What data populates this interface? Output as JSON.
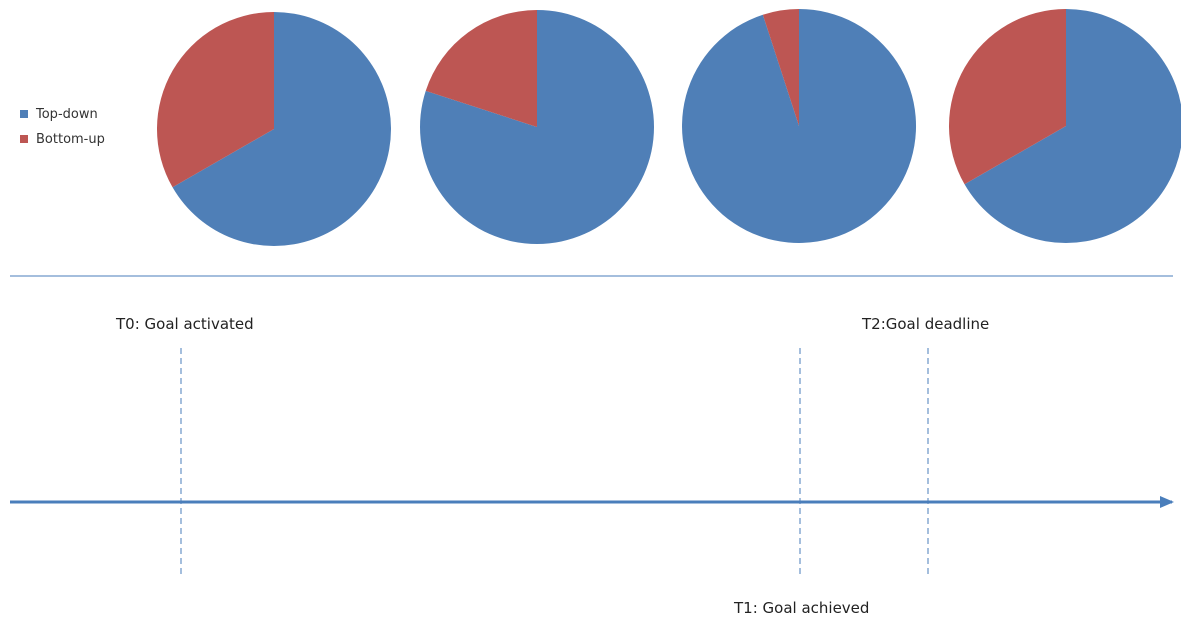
{
  "chart_data": {
    "type": "pie",
    "legend": {
      "placement": "left",
      "entries": [
        {
          "name": "Top-down",
          "color": "#4f7fb7"
        },
        {
          "name": "Bottom-up",
          "color": "#bd5653"
        }
      ]
    },
    "pies": [
      {
        "slices": [
          {
            "name": "Top-down",
            "value": 66.7
          },
          {
            "name": "Bottom-up",
            "value": 33.3
          }
        ]
      },
      {
        "slices": [
          {
            "name": "Top-down",
            "value": 80
          },
          {
            "name": "Bottom-up",
            "value": 20
          }
        ]
      },
      {
        "slices": [
          {
            "name": "Top-down",
            "value": 95
          },
          {
            "name": "Bottom-up",
            "value": 5
          }
        ]
      },
      {
        "slices": [
          {
            "name": "Top-down",
            "value": 66.7
          },
          {
            "name": "Bottom-up",
            "value": 33.3
          }
        ]
      }
    ],
    "timeline": {
      "events": [
        {
          "label": "T0: Goal activated",
          "label_side": "above"
        },
        {
          "label": "T1: Goal achieved",
          "label_side": "below"
        },
        {
          "label": "T2:Goal deadline",
          "label_side": "above"
        }
      ],
      "color": "#4a7ebb"
    }
  }
}
